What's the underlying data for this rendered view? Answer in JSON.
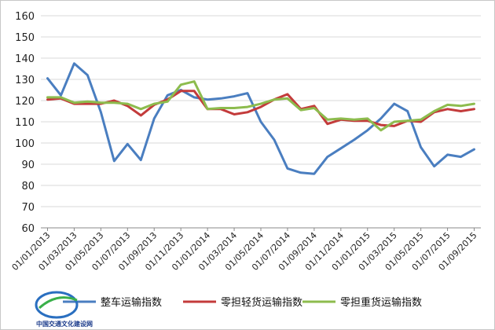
{
  "chart_data": {
    "type": "line",
    "title": "",
    "xlabel": "",
    "ylabel": "",
    "ylim": [
      60,
      160
    ],
    "y_ticks": [
      60,
      70,
      80,
      90,
      100,
      110,
      120,
      130,
      140,
      150,
      160
    ],
    "grid": "horizontal",
    "legend_position": "bottom",
    "x_tick_labels": [
      "01/01/2013",
      "01/03/2013",
      "01/05/2013",
      "01/07/2013",
      "01/09/2013",
      "01/11/2013",
      "01/01/2014",
      "01/03/2014",
      "01/05/2014",
      "01/07/2014",
      "01/09/2014",
      "01/11/2014",
      "01/01/2015",
      "01/03/2015",
      "01/05/2015",
      "01/07/2015",
      "01/09/2015"
    ],
    "x": [
      "2013-01",
      "2013-02",
      "2013-03",
      "2013-04",
      "2013-05",
      "2013-06",
      "2013-07",
      "2013-08",
      "2013-09",
      "2013-10",
      "2013-11",
      "2013-12",
      "2014-01",
      "2014-02",
      "2014-03",
      "2014-04",
      "2014-05",
      "2014-06",
      "2014-07",
      "2014-08",
      "2014-09",
      "2014-10",
      "2014-11",
      "2014-12",
      "2015-01",
      "2015-02",
      "2015-03",
      "2015-04",
      "2015-05",
      "2015-06",
      "2015-07",
      "2015-08",
      "2015-09"
    ],
    "series": [
      {
        "name": "整车运输指数",
        "color": "#4a7ec0",
        "values": [
          130.5,
          122.5,
          137.5,
          132,
          114.5,
          91.5,
          99.5,
          92,
          111.5,
          122.5,
          125,
          121.5,
          120.5,
          121,
          122,
          123.5,
          110,
          101.5,
          88,
          86,
          85.5,
          93.5,
          97.5,
          101.5,
          106,
          111.5,
          118.5,
          115,
          98,
          89,
          94.5,
          93.5,
          97
        ]
      },
      {
        "name": "零担轻货运输指数",
        "color": "#c33b3b",
        "values": [
          120.5,
          121,
          118.5,
          118.5,
          118.5,
          120,
          117.5,
          113,
          118,
          120.5,
          124.5,
          124.5,
          116,
          116,
          113.5,
          114.5,
          117,
          120.5,
          123,
          116,
          117.5,
          109,
          111,
          110.5,
          110.5,
          108.5,
          108,
          110.5,
          110,
          114.5,
          116,
          115,
          116
        ]
      },
      {
        "name": "零担重货运输指数",
        "color": "#8dbc4e",
        "values": [
          121.5,
          121.5,
          119,
          119.5,
          119,
          119,
          118.5,
          116,
          118.5,
          119.5,
          127.5,
          129,
          116,
          116.5,
          116.5,
          117,
          118.5,
          120.5,
          121,
          115.5,
          116.5,
          111,
          111.5,
          111,
          111.5,
          106,
          110,
          110.5,
          111,
          115,
          118,
          117.5,
          118.5
        ]
      }
    ]
  },
  "watermark": {
    "text": "中国交通文化建设网"
  }
}
